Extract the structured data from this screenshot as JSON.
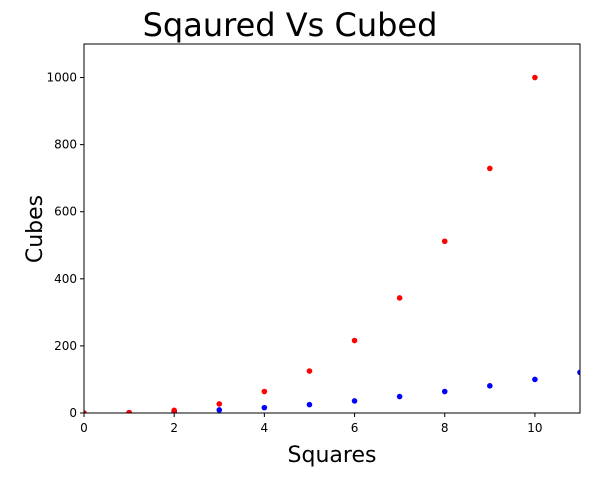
{
  "chart_data": {
    "type": "scatter",
    "title": "Sqaured Vs Cubed",
    "xlabel": "Squares",
    "ylabel": "Cubes",
    "xlim": [
      0,
      11
    ],
    "ylim": [
      0,
      1100
    ],
    "xticks": [
      0,
      2,
      4,
      6,
      8,
      10
    ],
    "yticks": [
      0,
      200,
      400,
      600,
      800,
      1000
    ],
    "grid": false,
    "series": [
      {
        "color": "#0000ff",
        "x": [
          0,
          1,
          2,
          3,
          4,
          5,
          6,
          7,
          8,
          9,
          10,
          11
        ],
        "y": [
          0,
          1,
          4,
          9,
          16,
          25,
          36,
          49,
          64,
          81,
          100,
          121
        ]
      },
      {
        "color": "#ff0000",
        "x": [
          0,
          1,
          2,
          3,
          4,
          5,
          6,
          7,
          8,
          9,
          10
        ],
        "y": [
          0,
          1,
          8,
          27,
          64,
          125,
          216,
          343,
          512,
          729,
          1000
        ]
      }
    ]
  }
}
